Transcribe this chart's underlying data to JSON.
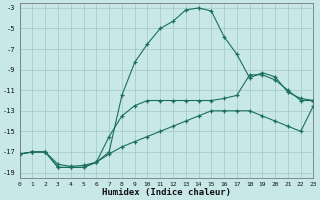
{
  "xlabel": "Humidex (Indice chaleur)",
  "bg_color": "#c8e8e8",
  "grid_color": "#a8cccc",
  "line_color": "#1a6e60",
  "xlim": [
    0,
    23
  ],
  "ylim": [
    -19.5,
    -2.5
  ],
  "xticks": [
    0,
    1,
    2,
    3,
    4,
    5,
    6,
    7,
    8,
    9,
    10,
    11,
    12,
    13,
    14,
    15,
    16,
    17,
    18,
    19,
    20,
    21,
    22,
    23
  ],
  "yticks": [
    -19,
    -17,
    -15,
    -13,
    -11,
    -9,
    -7,
    -5,
    -3
  ],
  "line1_x": [
    0,
    1,
    2,
    3,
    4,
    5,
    6,
    7,
    8,
    9,
    10,
    11,
    12,
    13,
    14,
    15,
    16,
    17,
    18,
    19,
    20,
    21,
    22,
    23
  ],
  "line1_y": [
    -17.2,
    -17.0,
    -17.0,
    -18.2,
    -18.4,
    -18.3,
    -18.0,
    -17.0,
    -11.5,
    -8.3,
    -6.5,
    -5.0,
    -4.3,
    -3.2,
    -3.0,
    -3.3,
    -5.8,
    -7.5,
    -9.8,
    -9.3,
    -9.7,
    -11.2,
    -11.8,
    -12.0
  ],
  "line2_x": [
    0,
    1,
    2,
    3,
    4,
    5,
    6,
    7,
    8,
    9,
    10,
    11,
    12,
    13,
    14,
    15,
    16,
    17,
    18,
    19,
    20,
    21,
    22,
    23
  ],
  "line2_y": [
    -17.2,
    -17.0,
    -17.0,
    -18.5,
    -18.5,
    -18.5,
    -18.0,
    -15.5,
    -13.5,
    -12.5,
    -12.0,
    -12.0,
    -12.0,
    -12.0,
    -12.0,
    -12.0,
    -11.8,
    -11.5,
    -9.5,
    -9.5,
    -10.0,
    -11.0,
    -12.0,
    -12.0
  ],
  "line3_x": [
    0,
    1,
    2,
    3,
    4,
    5,
    6,
    7,
    8,
    9,
    10,
    11,
    12,
    13,
    14,
    15,
    16,
    17,
    18,
    19,
    20,
    21,
    22,
    23
  ],
  "line3_y": [
    -17.2,
    -17.0,
    -17.0,
    -18.5,
    -18.5,
    -18.5,
    -18.0,
    -17.2,
    -16.5,
    -16.0,
    -15.5,
    -15.0,
    -14.5,
    -14.0,
    -13.5,
    -13.0,
    -13.0,
    -13.0,
    -13.0,
    -13.5,
    -14.0,
    -14.5,
    -15.0,
    -12.5
  ]
}
